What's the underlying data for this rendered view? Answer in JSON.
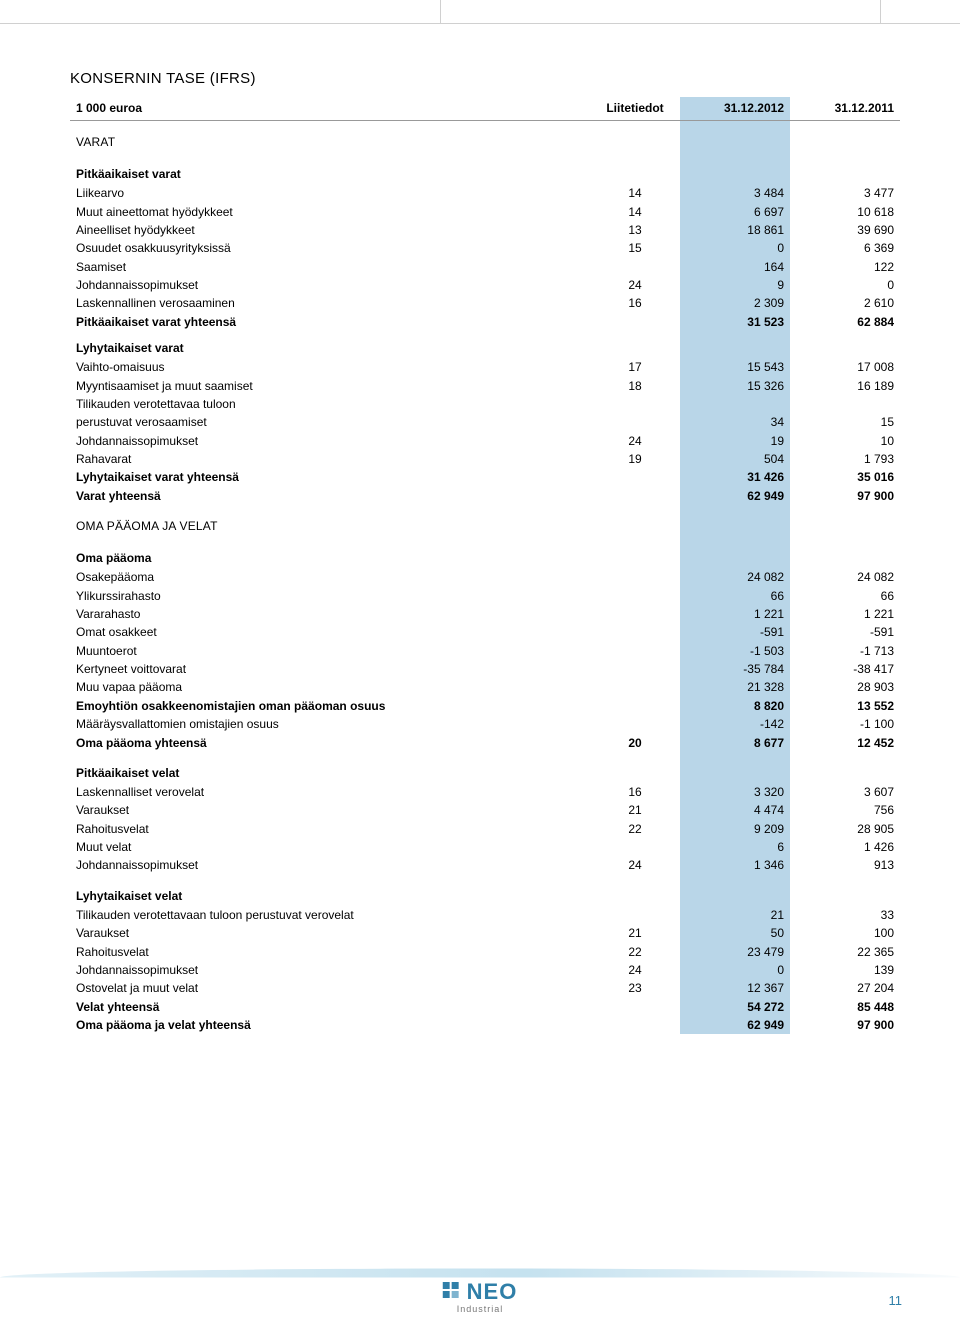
{
  "title": "KONSERNIN TASE (IFRS)",
  "header": {
    "label": "1 000 euroa",
    "note": "Liitetiedot",
    "c1": "31.12.2012",
    "c2": "31.12.2011"
  },
  "sections": {
    "varat": "VARAT",
    "oma_paaoma_velat": "OMA PÄÄOMA JA VELAT"
  },
  "groups": {
    "pitkavarat": {
      "title": "Pitkäaikaiset varat",
      "rows": [
        {
          "label": "Liikearvo",
          "note": "14",
          "v1": "3 484",
          "v2": "3 477"
        },
        {
          "label": "Muut aineettomat hyödykkeet",
          "note": "14",
          "v1": "6 697",
          "v2": "10 618"
        },
        {
          "label": "Aineelliset hyödykkeet",
          "note": "13",
          "v1": "18 861",
          "v2": "39 690"
        },
        {
          "label": "Osuudet osakkuusyrityksissä",
          "note": "15",
          "v1": "0",
          "v2": "6 369"
        },
        {
          "label": "Saamiset",
          "note": "",
          "v1": "164",
          "v2": "122"
        },
        {
          "label": "Johdannaissopimukset",
          "note": "24",
          "v1": "9",
          "v2": "0"
        },
        {
          "label": "Laskennallinen verosaaminen",
          "note": "16",
          "v1": "2 309",
          "v2": "2 610"
        }
      ],
      "total": {
        "label": "Pitkäaikaiset varat yhteensä",
        "v1": "31 523",
        "v2": "62 884"
      }
    },
    "lyhytvarat": {
      "title": "Lyhytaikaiset varat",
      "rows": [
        {
          "label": "Vaihto-omaisuus",
          "note": "17",
          "v1": "15 543",
          "v2": "17 008"
        },
        {
          "label": "Myyntisaamiset ja muut saamiset",
          "note": "18",
          "v1": "15 326",
          "v2": "16 189"
        },
        {
          "label": "Tilikauden verotettavaa tuloon",
          "note": "",
          "v1": "",
          "v2": ""
        },
        {
          "label": "perustuvat verosaamiset",
          "note": "",
          "v1": "34",
          "v2": "15"
        },
        {
          "label": "Johdannaissopimukset",
          "note": "24",
          "v1": "19",
          "v2": "10"
        },
        {
          "label": "Rahavarat",
          "note": "19",
          "v1": "504",
          "v2": "1 793"
        }
      ],
      "total": {
        "label": "Lyhytaikaiset varat yhteensä",
        "v1": "31 426",
        "v2": "35 016"
      },
      "grand": {
        "label": "Varat yhteensä",
        "v1": "62 949",
        "v2": "97 900"
      }
    },
    "omapaaoma": {
      "title": "Oma pääoma",
      "rows": [
        {
          "label": "Osakepääoma",
          "note": "",
          "v1": "24 082",
          "v2": "24 082"
        },
        {
          "label": "Ylikurssirahasto",
          "note": "",
          "v1": "66",
          "v2": "66"
        },
        {
          "label": "Vararahasto",
          "note": "",
          "v1": "1 221",
          "v2": "1 221"
        },
        {
          "label": "Omat osakkeet",
          "note": "",
          "v1": "-591",
          "v2": "-591"
        },
        {
          "label": "Muuntoerot",
          "note": "",
          "v1": "-1 503",
          "v2": "-1 713"
        },
        {
          "label": "Kertyneet voittovarat",
          "note": "",
          "v1": "-35 784",
          "v2": "-38 417"
        },
        {
          "label": "Muu vapaa pääoma",
          "note": "",
          "v1": "21 328",
          "v2": "28 903"
        }
      ],
      "subtotal": {
        "label": "Emoyhtiön osakkeenomistajien oman pääoman osuus",
        "v1": "8 820",
        "v2": "13 552"
      },
      "extra": {
        "label": "Määräysvallattomien omistajien osuus",
        "v1": "-142",
        "v2": "-1 100"
      },
      "total": {
        "label": "Oma pääoma yhteensä",
        "note": "20",
        "v1": "8 677",
        "v2": "12 452"
      }
    },
    "pitkavelat": {
      "title": "Pitkäaikaiset velat",
      "rows": [
        {
          "label": "Laskennalliset verovelat",
          "note": "16",
          "v1": "3 320",
          "v2": "3 607"
        },
        {
          "label": "Varaukset",
          "note": "21",
          "v1": "4 474",
          "v2": "756"
        },
        {
          "label": "Rahoitusvelat",
          "note": "22",
          "v1": "9 209",
          "v2": "28 905"
        },
        {
          "label": "Muut velat",
          "note": "",
          "v1": "6",
          "v2": "1 426"
        },
        {
          "label": "Johdannaissopimukset",
          "note": "24",
          "v1": "1 346",
          "v2": "913"
        }
      ]
    },
    "lyhytvelat": {
      "title": "Lyhytaikaiset velat",
      "rows": [
        {
          "label": "Tilikauden verotettavaan tuloon perustuvat verovelat",
          "note": "",
          "v1": "21",
          "v2": "33"
        },
        {
          "label": "Varaukset",
          "note": "21",
          "v1": "50",
          "v2": "100"
        },
        {
          "label": "Rahoitusvelat",
          "note": "22",
          "v1": "23 479",
          "v2": "22 365"
        },
        {
          "label": "Johdannaissopimukset",
          "note": "24",
          "v1": "0",
          "v2": "139"
        },
        {
          "label": "Ostovelat ja muut velat",
          "note": "23",
          "v1": "12 367",
          "v2": "27 204"
        }
      ],
      "total": {
        "label": "Velat yhteensä",
        "v1": "54 272",
        "v2": "85 448"
      },
      "grand": {
        "label": "Oma pääoma ja velat yhteensä",
        "v1": "62 949",
        "v2": "97 900"
      }
    }
  },
  "logo": {
    "name": "NEO",
    "sub": "Industrial"
  },
  "page": "11",
  "colors": {
    "highlight": "#b9d6e8",
    "accent": "#2f7fa8",
    "text": "#000000",
    "rule": "#d0d0d0"
  }
}
